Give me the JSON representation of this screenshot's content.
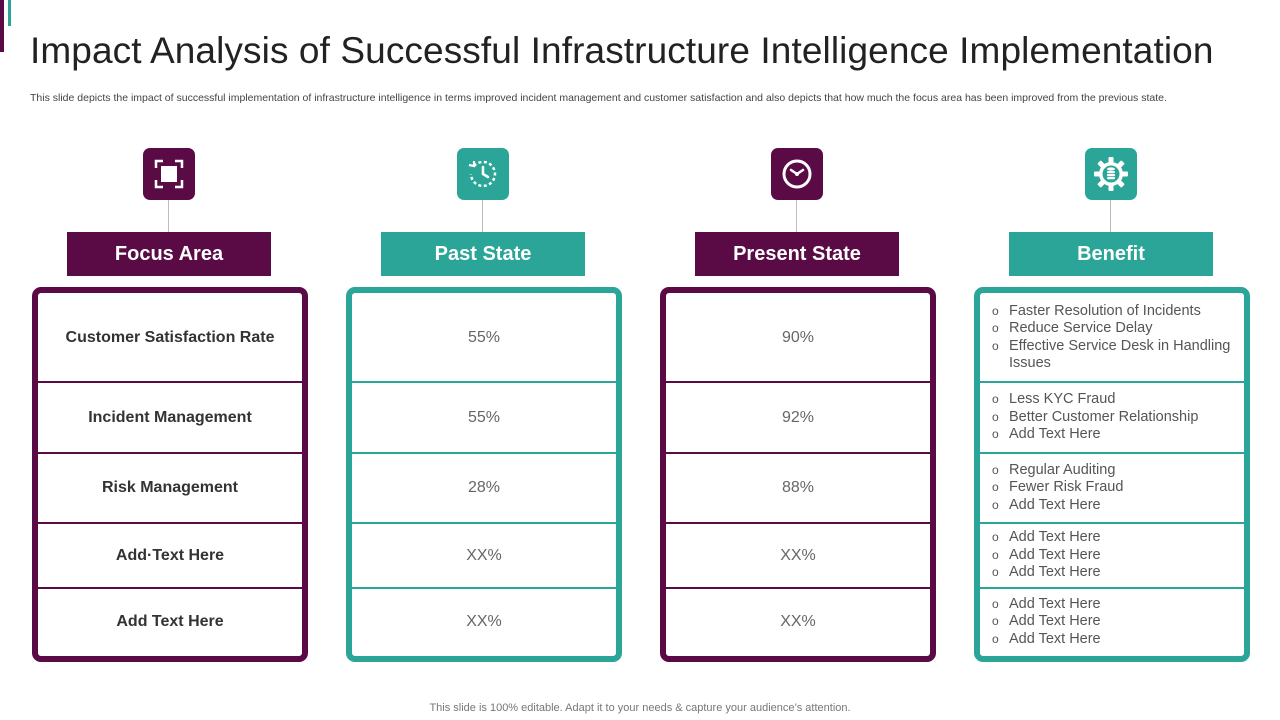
{
  "title": "Impact Analysis of Successful Infrastructure Intelligence Implementation",
  "subtitle": "This slide depicts the impact of successful implementation of infrastructure intelligence in terms improved incident management and customer satisfaction and also depicts that how much the focus area has been improved from the previous state.",
  "colors": {
    "purple": "#5a0b45",
    "teal": "#2aa597"
  },
  "columns": {
    "focus": {
      "header": "Focus Area",
      "icon": "focus-frame-icon",
      "rows": [
        "Customer Satisfaction Rate",
        "Incident Management",
        "Risk Management",
        "Add·Text Here",
        "Add Text Here"
      ]
    },
    "past": {
      "header": "Past State",
      "icon": "history-clock-icon",
      "rows": [
        "55%",
        "55%",
        "28%",
        "XX%",
        "XX%"
      ]
    },
    "present": {
      "header": "Present State",
      "icon": "clock-icon",
      "rows": [
        "90%",
        "92%",
        "88%",
        "XX%",
        "XX%"
      ]
    },
    "benefit": {
      "header": "Benefit",
      "icon": "gear-coins-icon",
      "rows": [
        [
          "Faster Resolution of Incidents",
          "Reduce Service Delay",
          "Effective Service Desk in Handling Issues"
        ],
        [
          "Less KYC Fraud",
          "Better Customer Relationship",
          "Add Text Here"
        ],
        [
          "Regular Auditing",
          "Fewer Risk Fraud",
          "Add Text Here"
        ],
        [
          "Add Text Here",
          "Add Text Here",
          "Add Text Here"
        ],
        [
          "Add Text Here",
          "Add Text Here",
          "Add Text Here"
        ]
      ]
    }
  },
  "footer": "This slide is 100% editable. Adapt it to your needs & capture your audience’s attention."
}
